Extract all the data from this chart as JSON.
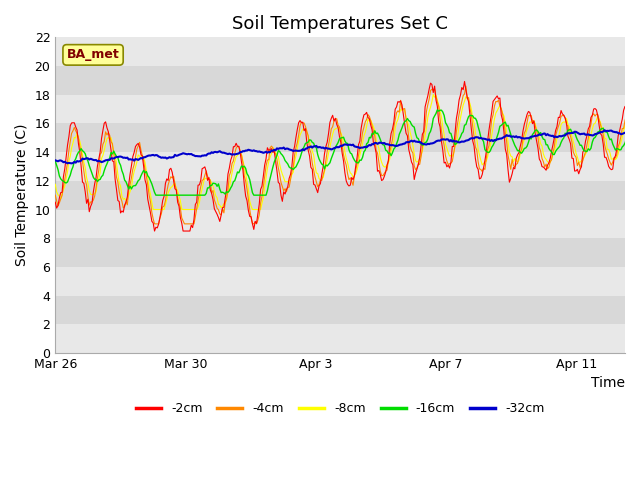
{
  "title": "Soil Temperatures Set C",
  "xlabel": "Time",
  "ylabel": "Soil Temperature (C)",
  "ylim": [
    0,
    22
  ],
  "yticks": [
    0,
    2,
    4,
    6,
    8,
    10,
    12,
    14,
    16,
    18,
    20,
    22
  ],
  "xtick_labels": [
    "Mar 26",
    "Mar 30",
    "Apr 3",
    "Apr 7",
    "Apr 11"
  ],
  "xtick_positions": [
    0,
    4,
    8,
    12,
    16
  ],
  "xlim": [
    0,
    17.5
  ],
  "colors": {
    "-2cm": "#ff0000",
    "-4cm": "#ff8800",
    "-8cm": "#ffff00",
    "-16cm": "#00dd00",
    "-32cm": "#0000cc"
  },
  "legend_label": "BA_met",
  "legend_box_facecolor": "#ffff99",
  "legend_box_edgecolor": "#888800",
  "legend_text_color": "#800000",
  "plot_bg_light": "#e8e8e8",
  "plot_bg_dark": "#d8d8d8",
  "title_fontsize": 13,
  "label_fontsize": 10,
  "tick_fontsize": 9,
  "legend_fontsize": 9
}
